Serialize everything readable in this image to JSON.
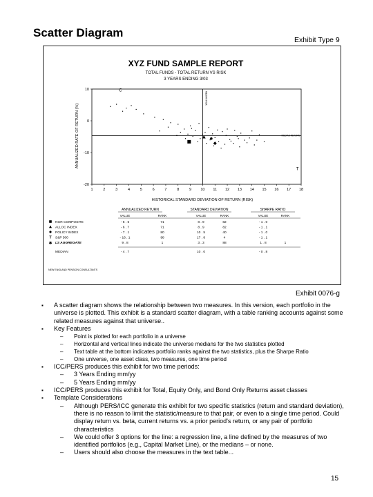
{
  "page": {
    "title": "Scatter Diagram",
    "exhibit_type": "Exhibit Type 9",
    "exhibit_number": "Exhibit 0076-g",
    "page_number": "15"
  },
  "report": {
    "title": "XYZ FUND SAMPLE REPORT",
    "subtitle1": "TOTAL FUNDS - TOTAL RETURN VS RISK",
    "subtitle2": "3 YEARS ENDING 3/03",
    "footer": "NEW ENGLAND PENSION CONSULTANTS"
  },
  "chart_data": {
    "type": "scatter",
    "xlabel": "HISTORICAL STANDARD DEVIATION OF RETURN (RISK)",
    "ylabel": "ANNUALIZED RATE OF RETURN (%)",
    "xlim": [
      1,
      18
    ],
    "ylim": [
      -20,
      10
    ],
    "x_ticks": [
      "1",
      "2",
      "3",
      "4",
      "5",
      "6",
      "7",
      "8",
      "9",
      "10",
      "11",
      "12",
      "13",
      "14",
      "15",
      "16",
      "17",
      "18"
    ],
    "y_ticks": [
      "10",
      "0",
      "-10",
      "-20"
    ],
    "median_x": 10.0,
    "median_y": -4.7,
    "median_x_label": "MEDIAN RISK",
    "median_y_label": "MEDIAN RETURN",
    "quadrant_markers": [
      "C",
      "T"
    ],
    "points": [
      [
        2.5,
        4.5
      ],
      [
        3.0,
        5.2
      ],
      [
        3.8,
        4.0
      ],
      [
        4.2,
        4.8
      ],
      [
        3.5,
        3.0
      ],
      [
        4.6,
        3.6
      ],
      [
        5.2,
        2.2
      ],
      [
        6.1,
        1.1
      ],
      [
        6.8,
        0.4
      ],
      [
        7.4,
        -0.6
      ],
      [
        7.2,
        -2.0
      ],
      [
        8.0,
        -1.1
      ],
      [
        8.5,
        -2.6
      ],
      [
        9.0,
        -1.6
      ],
      [
        9.4,
        -3.1
      ],
      [
        9.7,
        -0.8
      ],
      [
        8.8,
        -4.2
      ],
      [
        9.2,
        -4.9
      ],
      [
        9.8,
        -5.6
      ],
      [
        10.2,
        -3.6
      ],
      [
        10.5,
        -2.1
      ],
      [
        10.8,
        -4.1
      ],
      [
        11.0,
        -5.3
      ],
      [
        11.3,
        -6.6
      ],
      [
        11.6,
        -3.4
      ],
      [
        11.9,
        -4.6
      ],
      [
        12.2,
        -5.9
      ],
      [
        12.5,
        -7.1
      ],
      [
        12.8,
        -4.9
      ],
      [
        13.1,
        -3.9
      ],
      [
        13.4,
        -6.1
      ],
      [
        13.8,
        -5.4
      ],
      [
        14.2,
        -7.6
      ],
      [
        14.6,
        -4.4
      ],
      [
        15.0,
        -6.6
      ],
      [
        12.0,
        -2.6
      ],
      [
        10.9,
        -7.9
      ],
      [
        11.5,
        -8.6
      ],
      [
        12.6,
        -3.0
      ],
      [
        9.6,
        -6.6
      ],
      [
        10.3,
        -7.1
      ],
      [
        8.2,
        -3.6
      ],
      [
        7.9,
        -4.6
      ],
      [
        14.0,
        -3.2
      ],
      [
        13.0,
        -8.2
      ],
      [
        11.2,
        -2.9
      ],
      [
        12.3,
        -6.4
      ],
      [
        10.0,
        -4.2
      ],
      [
        9.1,
        -2.4
      ],
      [
        13.6,
        -6.9
      ],
      [
        8.6,
        -5.6
      ],
      [
        11.8,
        -7.4
      ],
      [
        12.9,
        -5.6
      ],
      [
        14.4,
        -6.1
      ],
      [
        10.6,
        -6.0
      ],
      [
        6.5,
        -3.2
      ]
    ],
    "labeled_points": [
      {
        "marker": "square",
        "x": 8.9,
        "y": -6.6
      },
      {
        "marker": "triangle",
        "x": 10.1,
        "y": -5.1
      },
      {
        "marker": "diamond",
        "x": 11.0,
        "y": -7.1
      },
      {
        "marker": "circle",
        "x": 10.7,
        "y": -5.6
      }
    ]
  },
  "stats_table": {
    "groups": [
      "ANNUALIZED RETURN",
      "STANDARD DEVIATION",
      "SHARPE RATIO"
    ],
    "headers": [
      "VALUE",
      "RANK",
      "VALUE",
      "RANK",
      "VALUE",
      "RANK"
    ],
    "rows": [
      {
        "label": "NGR COMPOSITE",
        "cells": [
          "- 6 . 6",
          "71",
          "8 . 9",
          "82",
          "- 1 . 0",
          ""
        ]
      },
      {
        "label": "ALLOC INDEX",
        "cells": [
          "- 6 . 7",
          "71",
          "8 . 9",
          "82",
          "- 1 . 1",
          ""
        ]
      },
      {
        "label": "POLICY INDEX",
        "cells": [
          "- 7 . 1",
          "80",
          "10 . 5",
          "40",
          "- 1 . 0",
          ""
        ]
      },
      {
        "label": "S&P 500",
        "cells": [
          "- 16 . 1",
          "98",
          "17 . 8",
          "4",
          "- 1 . 1",
          ""
        ]
      },
      {
        "label": "LS AGGREGATE",
        "cells": [
          "9 . 8",
          "1",
          "3 . 3",
          "88",
          "1 . 8",
          "1"
        ]
      }
    ],
    "median_label": "MEDIAN",
    "median_cells": [
      "- 4 . 7",
      "",
      "10 . 0",
      "",
      "- 0 . 8",
      ""
    ]
  },
  "bullets": [
    {
      "text": "A scatter diagram shows the relationship between two measures.  In this version, each portfolio in the universe is plotted. This exhibit is a standard scatter diagram, with a table ranking accounts against some related measures against that universe..",
      "subs": []
    },
    {
      "text": "Key Features",
      "subs": [
        "Point is plotted for each portfolio in a universe",
        "Horizontal and vertical lines indicate the universe medians for the two statistics plotted",
        "Text table at the bottom indicates portfolio ranks against the two statistics, plus the Sharpe Ratio",
        "One universe, one asset class, two measures, one time period"
      ]
    },
    {
      "text": "ICC/PERS produces this exhibit for two time periods:",
      "subs": [
        "3 Years Ending mm/yy",
        "5 Years Ending mm/yy"
      ]
    },
    {
      "text": "ICC/PERS produces this exhibit for Total, Equity Only, and Bond Only Returns asset classes",
      "subs": []
    },
    {
      "text": "Template Considerations",
      "subs": [
        "Although PERS/ICC generate this exhibit for two specific statistics (return and standard deviation), there is no reason to limit the statistic/measure to that pair, or even to a single time period.  Could display return vs. beta, current returns vs. a prior period's return, or any pair of portfolio characteristics",
        "We could offer 3 options for the line:  a regression line, a line defined by the measures of two identified portfolios (e.g., Capital Market Line), or the medians – or none.",
        "Users should also choose the measures in the text table..."
      ]
    }
  ]
}
